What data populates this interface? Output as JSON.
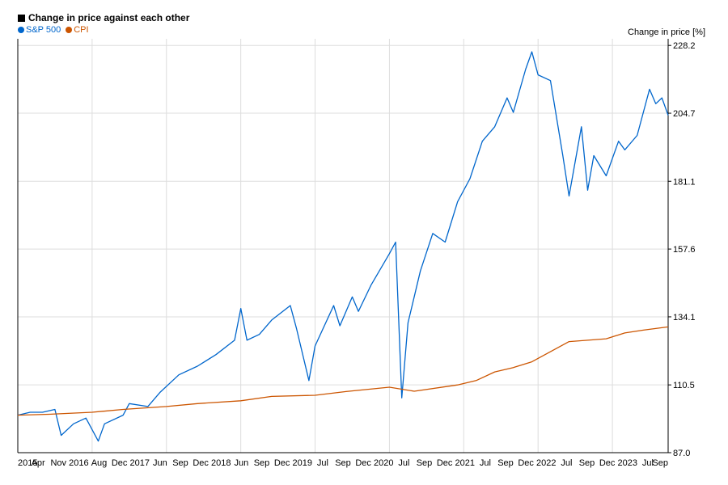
{
  "chart_data": {
    "type": "line",
    "title": "Change in price against each other",
    "ylabel": "Change in price [%]",
    "xlabel": "",
    "ylim": [
      87.0,
      230.5
    ],
    "yticks": [
      "87.0",
      "110.5",
      "134.1",
      "157.6",
      "181.1",
      "204.7",
      "228.2"
    ],
    "xticks": [
      "2015",
      "Apr",
      "Nov",
      "2016",
      "Aug",
      "Dec",
      "2017",
      "Jun",
      "Sep",
      "Dec",
      "2018",
      "Jun",
      "Sep",
      "Dec",
      "2019",
      "Jul",
      "Sep",
      "Dec",
      "2020",
      "Jul",
      "Sep",
      "Dec",
      "2021",
      "Jul",
      "Sep",
      "Dec",
      "2022",
      "Jul",
      "Sep",
      "Dec",
      "2023",
      "Jul",
      "Sep"
    ],
    "x_range": [
      "2015-01",
      "2023-10"
    ],
    "grid": true,
    "legend_position": "top-left",
    "series": [
      {
        "name": "S&P 500",
        "color": "#0066cc",
        "points": [
          [
            "2015-01",
            100
          ],
          [
            "2015-03",
            101
          ],
          [
            "2015-05",
            101
          ],
          [
            "2015-07",
            102
          ],
          [
            "2015-08",
            93
          ],
          [
            "2015-10",
            97
          ],
          [
            "2015-12",
            99
          ],
          [
            "2016-02",
            91
          ],
          [
            "2016-03",
            97
          ],
          [
            "2016-06",
            100
          ],
          [
            "2016-07",
            104
          ],
          [
            "2016-10",
            103
          ],
          [
            "2016-12",
            108
          ],
          [
            "2017-03",
            114
          ],
          [
            "2017-06",
            117
          ],
          [
            "2017-09",
            121
          ],
          [
            "2017-12",
            126
          ],
          [
            "2018-01",
            137
          ],
          [
            "2018-02",
            126
          ],
          [
            "2018-04",
            128
          ],
          [
            "2018-06",
            133
          ],
          [
            "2018-09",
            138
          ],
          [
            "2018-10",
            130
          ],
          [
            "2018-12",
            112
          ],
          [
            "2019-01",
            124
          ],
          [
            "2019-04",
            138
          ],
          [
            "2019-05",
            131
          ],
          [
            "2019-07",
            141
          ],
          [
            "2019-08",
            136
          ],
          [
            "2019-10",
            145
          ],
          [
            "2020-01",
            156
          ],
          [
            "2020-02",
            160
          ],
          [
            "2020-03",
            106
          ],
          [
            "2020-04",
            132
          ],
          [
            "2020-06",
            150
          ],
          [
            "2020-08",
            163
          ],
          [
            "2020-10",
            160
          ],
          [
            "2020-12",
            174
          ],
          [
            "2021-02",
            182
          ],
          [
            "2021-04",
            195
          ],
          [
            "2021-06",
            200
          ],
          [
            "2021-08",
            210
          ],
          [
            "2021-09",
            205
          ],
          [
            "2021-11",
            220
          ],
          [
            "2021-12",
            226
          ],
          [
            "2022-01",
            218
          ],
          [
            "2022-03",
            216
          ],
          [
            "2022-05",
            190
          ],
          [
            "2022-06",
            176
          ],
          [
            "2022-08",
            200
          ],
          [
            "2022-09",
            178
          ],
          [
            "2022-10",
            190
          ],
          [
            "2022-12",
            183
          ],
          [
            "2023-02",
            195
          ],
          [
            "2023-03",
            192
          ],
          [
            "2023-05",
            197
          ],
          [
            "2023-07",
            213
          ],
          [
            "2023-08",
            208
          ],
          [
            "2023-09",
            210
          ],
          [
            "2023-10",
            204
          ]
        ]
      },
      {
        "name": "CPI",
        "color": "#cc5500",
        "points": [
          [
            "2015-01",
            100
          ],
          [
            "2015-06",
            100.3
          ],
          [
            "2016-01",
            101
          ],
          [
            "2016-06",
            102
          ],
          [
            "2017-01",
            103
          ],
          [
            "2017-06",
            104
          ],
          [
            "2018-01",
            105
          ],
          [
            "2018-06",
            106.5
          ],
          [
            "2019-01",
            106.9
          ],
          [
            "2019-06",
            108.2
          ],
          [
            "2020-01",
            109.7
          ],
          [
            "2020-05",
            108.3
          ],
          [
            "2020-12",
            110.5
          ],
          [
            "2021-03",
            112
          ],
          [
            "2021-06",
            115
          ],
          [
            "2021-09",
            116.5
          ],
          [
            "2021-12",
            118.5
          ],
          [
            "2022-03",
            122
          ],
          [
            "2022-06",
            125.5
          ],
          [
            "2022-09",
            126
          ],
          [
            "2022-12",
            126.5
          ],
          [
            "2023-03",
            128.5
          ],
          [
            "2023-06",
            129.5
          ],
          [
            "2023-10",
            130.6
          ]
        ]
      }
    ]
  }
}
